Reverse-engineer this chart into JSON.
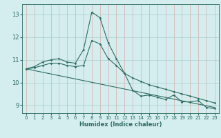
{
  "xlabel": "Humidex (Indice chaleur)",
  "bg_color": "#d4eef0",
  "grid_color_v": "#ddaaaa",
  "grid_color_h": "#aacccc",
  "line_color": "#2d6b5e",
  "xlim": [
    -0.5,
    23.5
  ],
  "ylim": [
    8.65,
    13.45
  ],
  "yticks": [
    9,
    10,
    11,
    12,
    13
  ],
  "xticks": [
    0,
    1,
    2,
    3,
    4,
    5,
    6,
    7,
    8,
    9,
    10,
    11,
    12,
    13,
    14,
    15,
    16,
    17,
    18,
    19,
    20,
    21,
    22,
    23
  ],
  "series1_x": [
    0,
    1,
    2,
    3,
    4,
    5,
    6,
    7,
    8,
    9,
    10,
    11,
    12,
    13,
    14,
    15,
    16,
    17,
    18,
    19,
    20,
    21,
    22,
    23
  ],
  "series1_y": [
    10.6,
    10.7,
    10.9,
    11.0,
    11.05,
    10.9,
    10.85,
    11.45,
    13.1,
    12.85,
    11.75,
    11.05,
    10.4,
    9.65,
    9.4,
    9.45,
    9.35,
    9.25,
    9.45,
    9.15,
    9.15,
    9.2,
    8.9,
    8.85
  ],
  "series2_x": [
    0,
    1,
    2,
    3,
    4,
    5,
    6,
    7,
    8,
    9,
    10,
    11,
    12,
    13,
    14,
    15,
    16,
    17,
    18,
    19,
    20,
    21,
    22,
    23
  ],
  "series2_y": [
    10.6,
    10.65,
    10.75,
    10.85,
    10.85,
    10.75,
    10.7,
    10.75,
    11.85,
    11.7,
    11.05,
    10.75,
    10.4,
    10.2,
    10.05,
    9.9,
    9.8,
    9.7,
    9.6,
    9.5,
    9.4,
    9.3,
    9.2,
    9.1
  ],
  "series3_x": [
    0,
    23
  ],
  "series3_y": [
    10.6,
    8.9
  ]
}
